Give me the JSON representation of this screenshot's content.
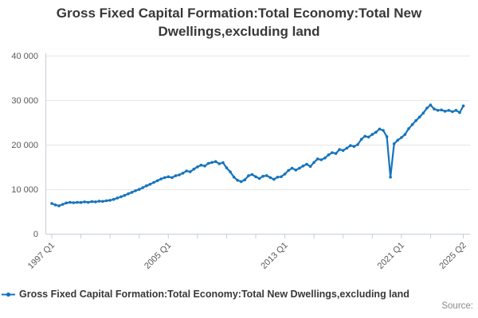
{
  "title": "Gross Fixed Capital Formation:Total Economy:Total New Dwellings,excluding land",
  "legend": {
    "series_label": "Gross Fixed Capital Formation:Total Economy:Total New Dwellings,excluding land",
    "marker": "line-with-dot"
  },
  "source_label": "Source:",
  "colors": {
    "line": "#1574bd",
    "grid": "#e6e6e6",
    "axis": "#c6cfda",
    "tick_label": "#595959",
    "title_text": "#383838",
    "source_text": "#8a8a8a"
  },
  "chart_data": {
    "type": "line",
    "title": "Gross Fixed Capital Formation:Total Economy:Total New Dwellings,excluding land",
    "x_unit": "quarter",
    "x_start": "1997 Q1",
    "x_end": "2025 Q2",
    "ylim": [
      0,
      40000
    ],
    "grid": "horizontal",
    "legend_position": "bottom-left",
    "marker_style": "point-on-line",
    "y_axis": {
      "ticks": [
        {
          "value": 0,
          "label": "0"
        },
        {
          "value": 10000,
          "label": "10 000"
        },
        {
          "value": 20000,
          "label": "20 000"
        },
        {
          "value": 30000,
          "label": "30 000"
        },
        {
          "value": 40000,
          "label": "40 000"
        }
      ]
    },
    "x_axis": {
      "ticks": [
        {
          "index": 0,
          "label": "1997 Q1"
        },
        {
          "index": 8,
          "label": ""
        },
        {
          "index": 16,
          "label": ""
        },
        {
          "index": 24,
          "label": ""
        },
        {
          "index": 32,
          "label": "2005 Q1"
        },
        {
          "index": 40,
          "label": ""
        },
        {
          "index": 48,
          "label": ""
        },
        {
          "index": 56,
          "label": ""
        },
        {
          "index": 64,
          "label": "2013 Q1"
        },
        {
          "index": 72,
          "label": ""
        },
        {
          "index": 80,
          "label": ""
        },
        {
          "index": 88,
          "label": ""
        },
        {
          "index": 96,
          "label": "2021 Q1"
        },
        {
          "index": 104,
          "label": ""
        },
        {
          "index": 113,
          "label": "2025 Q2"
        }
      ]
    },
    "series": [
      {
        "name": "Gross Fixed Capital Formation:Total Economy:Total New Dwellings,excluding land",
        "start_period": "1997 Q1",
        "frequency": "quarterly",
        "values": [
          6900,
          6550,
          6350,
          6700,
          7000,
          7150,
          7050,
          7150,
          7100,
          7250,
          7150,
          7300,
          7250,
          7400,
          7350,
          7500,
          7600,
          7800,
          8100,
          8400,
          8700,
          9050,
          9400,
          9750,
          10050,
          10450,
          10850,
          11200,
          11600,
          12000,
          12400,
          12700,
          12900,
          12700,
          13100,
          13300,
          13700,
          14200,
          14000,
          14600,
          15100,
          15500,
          15300,
          15900,
          16100,
          16300,
          15800,
          16050,
          14900,
          14000,
          12800,
          12100,
          11800,
          12200,
          13100,
          13400,
          12900,
          12500,
          13000,
          13150,
          12700,
          12300,
          12800,
          12900,
          13500,
          14300,
          14800,
          14400,
          14800,
          15300,
          15700,
          15200,
          16100,
          16900,
          16700,
          17100,
          17800,
          18300,
          18100,
          19000,
          18800,
          19300,
          19900,
          19700,
          20100,
          21300,
          22000,
          21800,
          22400,
          22900,
          23600,
          23300,
          21900,
          12800,
          20300,
          21100,
          21700,
          22400,
          23700,
          24600,
          25500,
          26300,
          27200,
          28300,
          29000,
          28100,
          27800,
          27900,
          27600,
          27800,
          27500,
          27800,
          27300,
          28800
        ]
      }
    ]
  }
}
